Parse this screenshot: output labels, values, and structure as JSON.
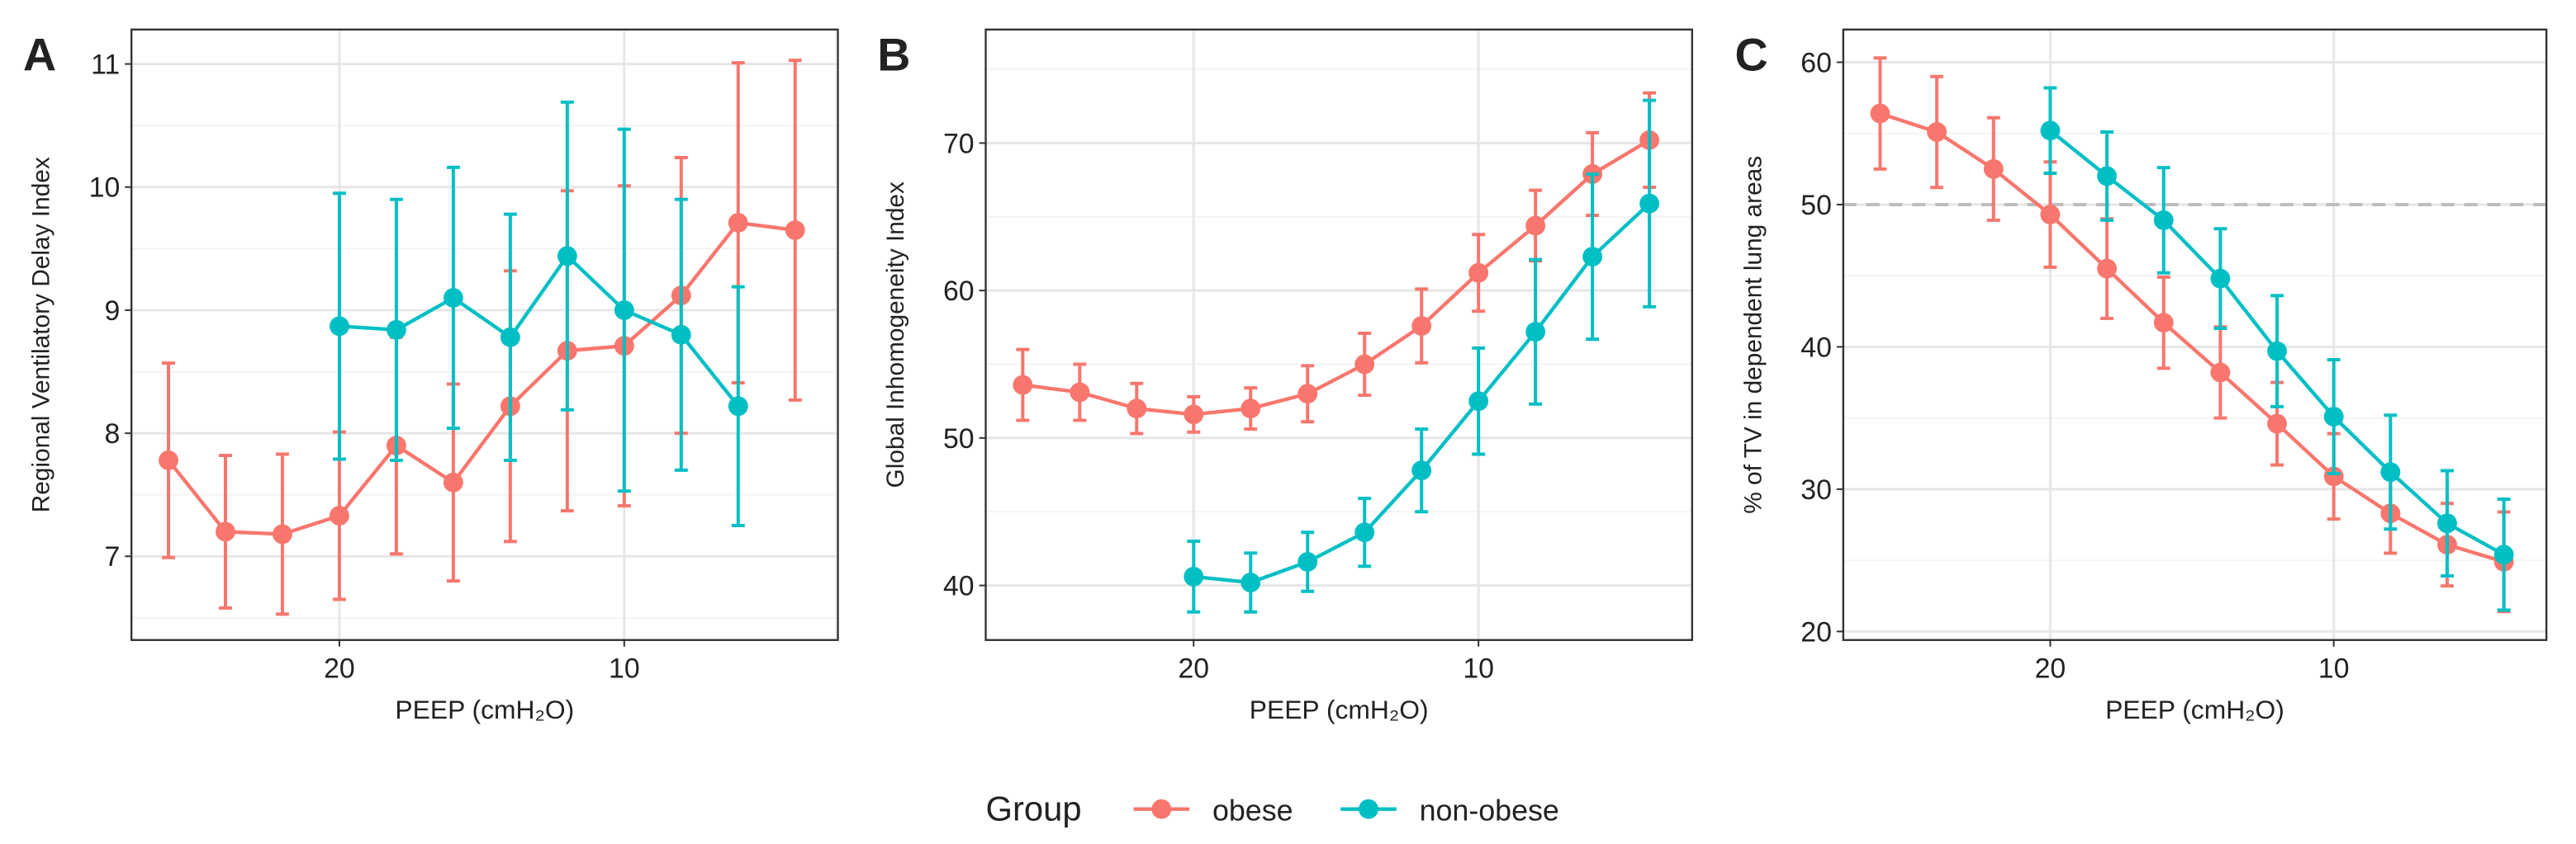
{
  "chart_data": [
    {
      "type": "line",
      "panel_label": "A",
      "ylabel": "Regional Ventilatory Delay Index",
      "xlabel": "PEEP (cmH₂O)",
      "xlim": [
        27.3,
        2.5
      ],
      "xticks": [
        20,
        10
      ],
      "ylim": [
        6.32,
        11.28
      ],
      "yticks": [
        7,
        8,
        9,
        10,
        11
      ],
      "grid": true,
      "series": [
        {
          "name": "obese",
          "color": "#F8766D",
          "x": [
            26,
            24,
            22,
            20,
            18,
            16,
            14,
            12,
            10,
            8,
            6,
            4
          ],
          "values": [
            7.78,
            7.2,
            7.18,
            7.33,
            7.9,
            7.6,
            8.22,
            8.67,
            8.71,
            9.12,
            9.71,
            9.65
          ],
          "errors": [
            0.79,
            0.62,
            0.65,
            0.68,
            0.88,
            0.8,
            1.1,
            1.3,
            1.3,
            1.12,
            1.3,
            1.38
          ]
        },
        {
          "name": "non-obese",
          "color": "#00BFC4",
          "x": [
            20,
            18,
            16,
            14,
            12,
            10,
            8,
            6
          ],
          "values": [
            8.87,
            8.84,
            9.1,
            8.78,
            9.44,
            9.0,
            8.8,
            8.22
          ],
          "errors": [
            1.08,
            1.06,
            1.06,
            1.0,
            1.25,
            1.47,
            1.1,
            0.97
          ]
        }
      ]
    },
    {
      "type": "line",
      "panel_label": "B",
      "ylabel": "Global Inhomogeneity Index",
      "xlabel": "PEEP (cmH₂O)",
      "xlim": [
        27.3,
        2.5
      ],
      "xticks": [
        20,
        10
      ],
      "ylim": [
        36.3,
        77.7
      ],
      "yticks": [
        40,
        50,
        60,
        70
      ],
      "grid": true,
      "series": [
        {
          "name": "obese",
          "color": "#F8766D",
          "x": [
            26,
            24,
            22,
            20,
            18,
            16,
            14,
            12,
            10,
            8,
            6,
            4
          ],
          "values": [
            53.6,
            53.1,
            52.0,
            51.6,
            52.0,
            53.0,
            55.0,
            57.6,
            61.2,
            64.4,
            67.9,
            70.2
          ],
          "errors": [
            2.4,
            1.9,
            1.7,
            1.2,
            1.4,
            1.9,
            2.1,
            2.5,
            2.6,
            2.4,
            2.8,
            3.2
          ]
        },
        {
          "name": "non-obese",
          "color": "#00BFC4",
          "x": [
            20,
            18,
            16,
            14,
            12,
            10,
            8,
            6,
            4
          ],
          "values": [
            40.6,
            40.2,
            41.6,
            43.6,
            47.8,
            52.5,
            57.2,
            62.3,
            65.9
          ],
          "errors": [
            2.4,
            2.0,
            2.0,
            2.3,
            2.8,
            3.6,
            4.9,
            5.6,
            7.0
          ]
        }
      ]
    },
    {
      "type": "line",
      "panel_label": "C",
      "ylabel": "% of TV in dependent lung areas",
      "xlabel": "PEEP (cmH₂O)",
      "xlim": [
        27.3,
        2.5
      ],
      "xticks": [
        20,
        10
      ],
      "ylim": [
        19.4,
        62.3
      ],
      "yticks": [
        20,
        30,
        40,
        50,
        60
      ],
      "grid": true,
      "hline": 50,
      "series": [
        {
          "name": "obese",
          "color": "#F8766D",
          "x": [
            26,
            24,
            22,
            20,
            18,
            16,
            14,
            12,
            10,
            8,
            6,
            4
          ],
          "values": [
            56.4,
            55.1,
            52.5,
            49.3,
            45.5,
            41.7,
            38.2,
            34.6,
            30.9,
            28.3,
            26.1,
            24.9
          ],
          "errors": [
            3.9,
            3.9,
            3.6,
            3.7,
            3.5,
            3.2,
            3.2,
            2.9,
            3.0,
            2.8,
            2.9,
            3.5
          ]
        },
        {
          "name": "non-obese",
          "color": "#00BFC4",
          "x": [
            20,
            18,
            16,
            14,
            12,
            10,
            8,
            6,
            4
          ],
          "values": [
            55.2,
            52.0,
            48.9,
            44.8,
            39.7,
            35.1,
            31.2,
            27.6,
            25.4
          ],
          "errors": [
            3.0,
            3.1,
            3.7,
            3.5,
            3.9,
            4.0,
            4.0,
            3.7,
            3.9
          ]
        }
      ]
    }
  ],
  "legend": {
    "title": "Group"
  }
}
